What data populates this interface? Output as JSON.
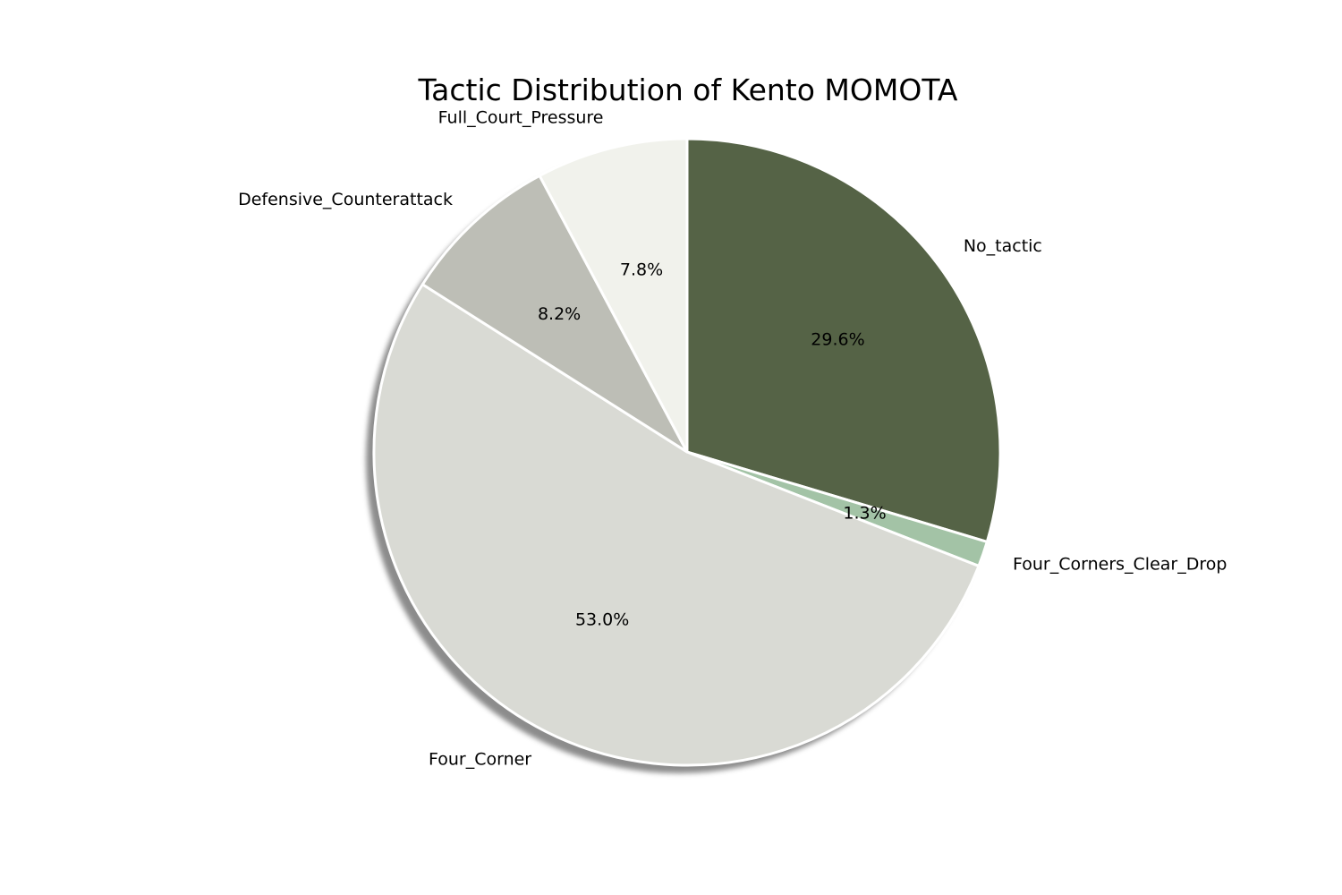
{
  "chart_data": {
    "type": "pie",
    "title": "Tactic Distribution of Kento MOMOTA",
    "start_angle_deg": 90,
    "direction": "clockwise",
    "shadow": true,
    "slices": [
      {
        "label": "No_tactic",
        "value": 29.6,
        "pct_label": "29.6%",
        "color": "#556346"
      },
      {
        "label": "Four_Corners_Clear_Drop",
        "value": 1.3,
        "pct_label": "1.3%",
        "color": "#a3c3a6"
      },
      {
        "label": "Four_Corner",
        "value": 53.0,
        "pct_label": "53.0%",
        "color": "#d9dad4"
      },
      {
        "label": "Defensive_Counterattack",
        "value": 8.2,
        "pct_label": "8.2%",
        "color": "#bdbeb6"
      },
      {
        "label": "Full_Court_Pressure",
        "value": 7.8,
        "pct_label": "7.8%",
        "color": "#f1f2ec"
      }
    ]
  }
}
